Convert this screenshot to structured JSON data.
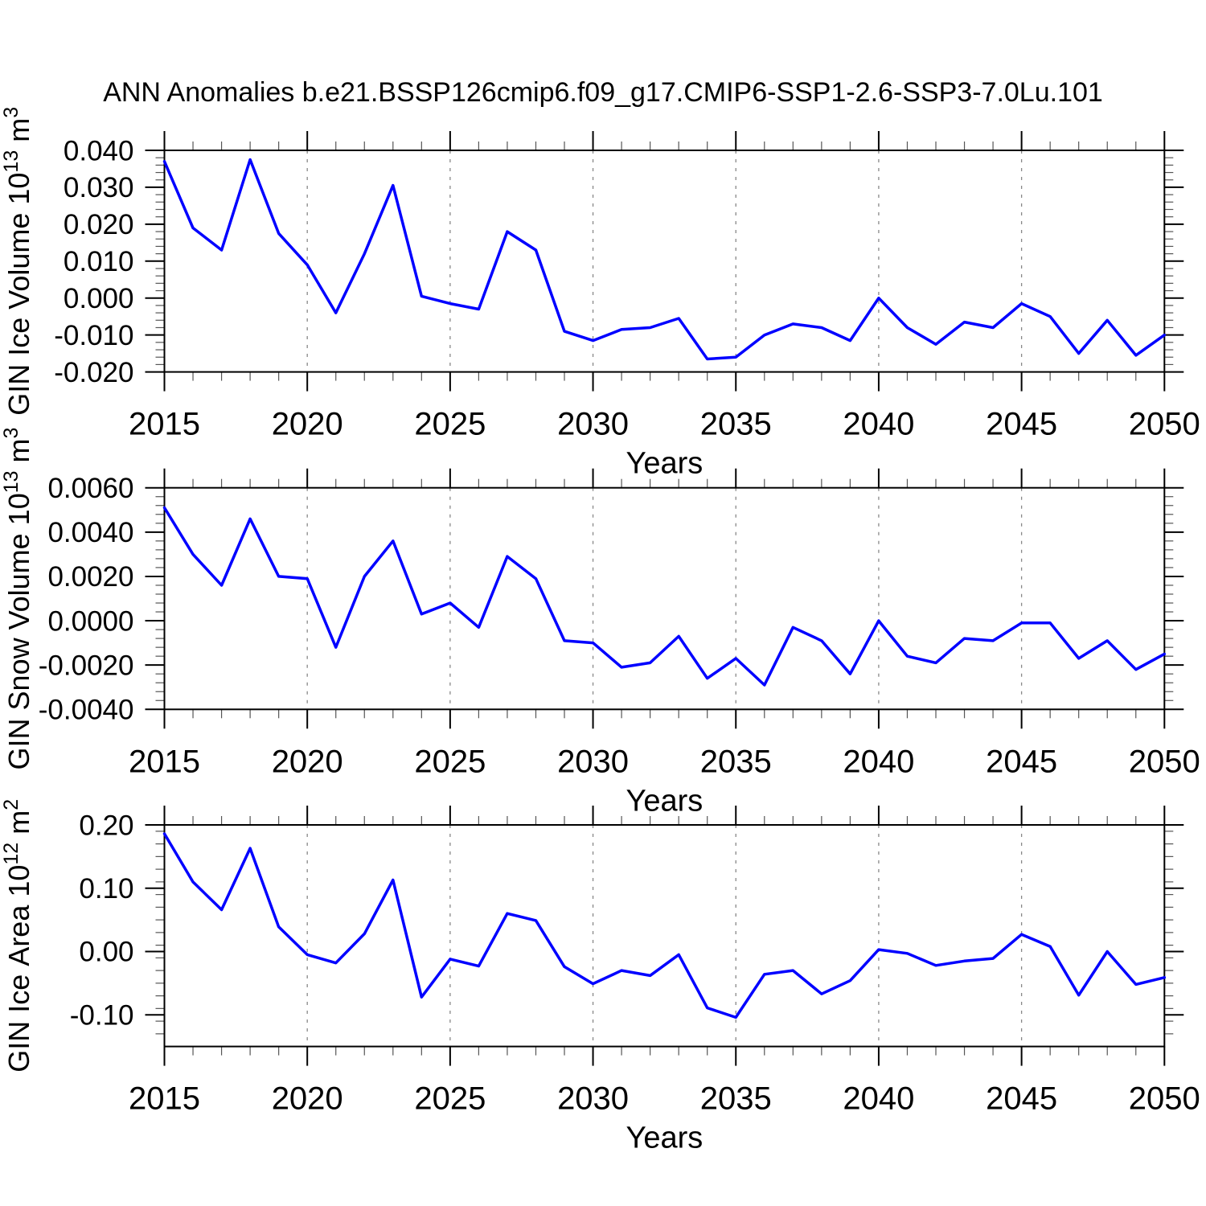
{
  "title": "ANN Anomalies b.e21.BSSP126cmip6.f09_g17.CMIP6-SSP1-2.6-SSP3-7.0Lu.101",
  "colors": {
    "line": "#0000ff",
    "frame": "#000000",
    "major_tick": "#000000",
    "minor_tick": "#555555",
    "gridline": "#888888",
    "text": "#000000"
  },
  "x_axis": {
    "label": "Years",
    "start_year": 2015,
    "end_year": 2050,
    "major_tick_labels": [
      "2015",
      "2020",
      "2025",
      "2030",
      "2035",
      "2040",
      "2045",
      "2050"
    ],
    "major_step": 5,
    "minor_step": 1,
    "gridline_years": [
      2020,
      2025,
      2030,
      2035,
      2040,
      2045
    ]
  },
  "chart_data": [
    {
      "type": "line",
      "name": "gin-ice-volume",
      "xlabel": "Years",
      "ylabel": "GIN Ice Volume 10^13 m^3",
      "ylabel_parts": {
        "base": "GIN Ice Volume 10",
        "exp": "13",
        "unit": " m",
        "unit_exp": "3"
      },
      "xlim": [
        2015,
        2050
      ],
      "ylim": [
        -0.02,
        0.04
      ],
      "grid": "vertical-dashed",
      "legend": "none",
      "y_major_ticks": [
        0.04,
        0.03,
        0.02,
        0.01,
        0.0,
        -0.01,
        -0.02
      ],
      "y_tick_labels": [
        "0.040",
        "0.030",
        "0.020",
        "0.010",
        "0.000",
        "-0.010",
        "-0.020"
      ],
      "y_minor_step": 0.002,
      "x": [
        2015,
        2016,
        2017,
        2018,
        2019,
        2020,
        2021,
        2022,
        2023,
        2024,
        2025,
        2026,
        2027,
        2028,
        2029,
        2030,
        2031,
        2032,
        2033,
        2034,
        2035,
        2036,
        2037,
        2038,
        2039,
        2040,
        2041,
        2042,
        2043,
        2044,
        2045,
        2046,
        2047,
        2048,
        2049,
        2050
      ],
      "values": [
        0.037,
        0.019,
        0.013,
        0.0375,
        0.0175,
        0.009,
        -0.004,
        0.012,
        0.0305,
        0.0005,
        -0.0015,
        -0.003,
        0.018,
        0.013,
        -0.009,
        -0.0115,
        -0.0085,
        -0.008,
        -0.0055,
        -0.0165,
        -0.016,
        -0.01,
        -0.007,
        -0.008,
        -0.0115,
        0.0,
        -0.008,
        -0.0125,
        -0.0065,
        -0.008,
        -0.0015,
        -0.005,
        -0.015,
        -0.006,
        -0.0155,
        -0.01
      ]
    },
    {
      "type": "line",
      "name": "gin-snow-volume",
      "xlabel": "Years",
      "ylabel": "GIN Snow Volume 10^13 m^3",
      "ylabel_parts": {
        "base": "GIN Snow Volume 10",
        "exp": "13",
        "unit": " m",
        "unit_exp": "3"
      },
      "xlim": [
        2015,
        2050
      ],
      "ylim": [
        -0.004,
        0.006
      ],
      "grid": "vertical-dashed",
      "legend": "none",
      "y_major_ticks": [
        0.006,
        0.004,
        0.002,
        0.0,
        -0.002,
        -0.004
      ],
      "y_tick_labels": [
        "0.0060",
        "0.0040",
        "0.0020",
        "0.0000",
        "-0.0020",
        "-0.0040"
      ],
      "y_minor_step": 0.0004,
      "x": [
        2015,
        2016,
        2017,
        2018,
        2019,
        2020,
        2021,
        2022,
        2023,
        2024,
        2025,
        2026,
        2027,
        2028,
        2029,
        2030,
        2031,
        2032,
        2033,
        2034,
        2035,
        2036,
        2037,
        2038,
        2039,
        2040,
        2041,
        2042,
        2043,
        2044,
        2045,
        2046,
        2047,
        2048,
        2049,
        2050
      ],
      "values": [
        0.0051,
        0.003,
        0.0016,
        0.0046,
        0.002,
        0.0019,
        -0.0012,
        0.002,
        0.0036,
        0.0003,
        0.0008,
        -0.0003,
        0.0029,
        0.0019,
        -0.0009,
        -0.001,
        -0.0021,
        -0.0019,
        -0.0007,
        -0.0026,
        -0.0017,
        -0.0029,
        -0.0003,
        -0.0009,
        -0.0024,
        0.0,
        -0.0016,
        -0.0019,
        -0.0008,
        -0.0009,
        -0.0001,
        -0.0001,
        -0.0017,
        -0.0009,
        -0.0022,
        -0.0015
      ]
    },
    {
      "type": "line",
      "name": "gin-ice-area",
      "xlabel": "Years",
      "ylabel": "GIN Ice Area 10^12 m^2",
      "ylabel_parts": {
        "base": "GIN Ice Area 10",
        "exp": "12",
        "unit": " m",
        "unit_exp": "2"
      },
      "xlim": [
        2015,
        2050
      ],
      "ylim": [
        -0.15,
        0.2
      ],
      "grid": "vertical-dashed",
      "legend": "none",
      "y_major_ticks": [
        0.2,
        0.1,
        0.0,
        -0.1
      ],
      "y_tick_labels": [
        "0.20",
        "0.10",
        "0.00",
        "-0.10"
      ],
      "y_minor_step": 0.02,
      "x": [
        2015,
        2016,
        2017,
        2018,
        2019,
        2020,
        2021,
        2022,
        2023,
        2024,
        2025,
        2026,
        2027,
        2028,
        2029,
        2030,
        2031,
        2032,
        2033,
        2034,
        2035,
        2036,
        2037,
        2038,
        2039,
        2040,
        2041,
        2042,
        2043,
        2044,
        2045,
        2046,
        2047,
        2048,
        2049,
        2050
      ],
      "values": [
        0.186,
        0.11,
        0.066,
        0.163,
        0.039,
        -0.005,
        -0.018,
        0.028,
        0.113,
        -0.072,
        -0.012,
        -0.023,
        0.06,
        0.049,
        -0.024,
        -0.051,
        -0.03,
        -0.038,
        -0.005,
        -0.089,
        -0.104,
        -0.036,
        -0.03,
        -0.067,
        -0.046,
        0.003,
        -0.003,
        -0.022,
        -0.015,
        -0.011,
        0.027,
        0.008,
        -0.069,
        0.0,
        -0.052,
        -0.041
      ]
    }
  ]
}
